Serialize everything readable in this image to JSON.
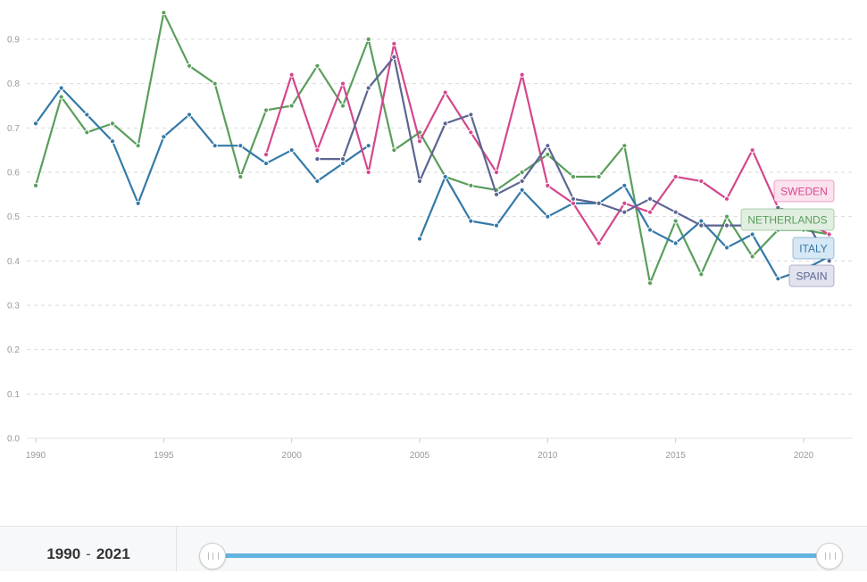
{
  "chart_data": {
    "type": "line",
    "xlim": [
      1990,
      2021
    ],
    "ylim": [
      0,
      0.9
    ],
    "x_ticks": [
      "1990",
      "1995",
      "2000",
      "2005",
      "2010",
      "2015",
      "2020"
    ],
    "y_ticks": [
      "0.0",
      "0.1",
      "0.2",
      "0.3",
      "0.4",
      "0.5",
      "0.6",
      "0.7",
      "0.8",
      "0.9"
    ],
    "grid": true,
    "legend": "end-of-line labels",
    "series": [
      {
        "name": "NETHERLANDS",
        "color": "#5a9e5c",
        "x": [
          1990,
          1991,
          1992,
          1993,
          1994,
          1995,
          1996,
          1997,
          1998,
          1999,
          2000,
          2001,
          2002,
          2003,
          2004,
          2005,
          2006,
          2007,
          2008,
          2009,
          2010,
          2011,
          2012,
          2013,
          2014,
          2015,
          2016,
          2017,
          2018,
          2019,
          2020,
          2021
        ],
        "values": [
          0.57,
          0.77,
          0.69,
          0.71,
          0.66,
          0.96,
          0.84,
          0.8,
          0.59,
          0.74,
          0.75,
          0.84,
          0.75,
          0.9,
          0.65,
          0.69,
          0.59,
          0.57,
          0.56,
          0.6,
          0.64,
          0.59,
          0.59,
          0.66,
          0.35,
          0.49,
          0.37,
          0.5,
          0.41,
          0.47,
          0.47,
          0.46
        ]
      },
      {
        "name": "ITALY",
        "color": "#3479a8",
        "x": [
          1990,
          1991,
          1992,
          1993,
          1994,
          1995,
          1996,
          1997,
          1998,
          1999,
          2000,
          2001,
          2002,
          2003,
          null,
          2005,
          2006,
          2007,
          2008,
          2009,
          2010,
          2011,
          2012,
          2013,
          2014,
          2015,
          2016,
          2017,
          2018,
          2019,
          2020,
          2021
        ],
        "values": [
          0.71,
          0.79,
          0.73,
          0.67,
          0.53,
          0.68,
          0.73,
          0.66,
          0.66,
          0.62,
          0.65,
          0.58,
          0.62,
          0.66,
          null,
          0.45,
          0.59,
          0.49,
          0.48,
          0.56,
          0.5,
          0.53,
          0.53,
          0.57,
          0.47,
          0.44,
          0.49,
          0.43,
          0.46,
          0.36,
          0.38,
          0.41
        ]
      },
      {
        "name": "SWEDEN",
        "color": "#d4478d",
        "x": [
          1999,
          2000,
          2001,
          2002,
          2003,
          2004,
          2005,
          2006,
          2007,
          2008,
          2009,
          2010,
          2011,
          2012,
          2013,
          2014,
          2015,
          2016,
          2017,
          2018,
          2019,
          2020,
          2021
        ],
        "values": [
          0.64,
          0.82,
          0.65,
          0.8,
          0.6,
          0.89,
          0.67,
          0.78,
          0.69,
          0.6,
          0.82,
          0.57,
          0.53,
          0.44,
          0.53,
          0.51,
          0.59,
          0.58,
          0.54,
          0.65,
          0.52,
          0.49,
          0.46
        ]
      },
      {
        "name": "SPAIN",
        "color": "#5c6592",
        "x": [
          2001,
          2002,
          2003,
          2004,
          2005,
          2006,
          2007,
          2008,
          2009,
          2010,
          2011,
          2012,
          2013,
          2014,
          2015,
          2016,
          2017,
          2018,
          2019,
          2020,
          2021
        ],
        "values": [
          0.63,
          0.63,
          0.79,
          0.86,
          0.58,
          0.71,
          0.73,
          0.55,
          0.58,
          0.66,
          0.54,
          0.53,
          0.51,
          0.54,
          0.51,
          0.48,
          0.48,
          0.48,
          0.52,
          0.5,
          0.4
        ]
      }
    ],
    "end_labels": [
      {
        "name": "SWEDEN",
        "text": "SWEDEN",
        "color": "#d4478d",
        "fill": "#fbe2ee"
      },
      {
        "name": "NETHERLANDS",
        "text": "NETHERLANDS",
        "color": "#5a9e5c",
        "fill": "#e0efe0"
      },
      {
        "name": "ITALY",
        "text": "ITALY",
        "color": "#3479a8",
        "fill": "#d6e8f5"
      },
      {
        "name": "SPAIN",
        "text": "SPAIN",
        "color": "#5c6592",
        "fill": "#e2e3ef"
      }
    ]
  },
  "footer": {
    "range_start": "1990",
    "range_sep": "-",
    "range_end": "2021"
  },
  "colors": {
    "slider_track": "#62b3e0",
    "grid": "#d9d9d9"
  }
}
